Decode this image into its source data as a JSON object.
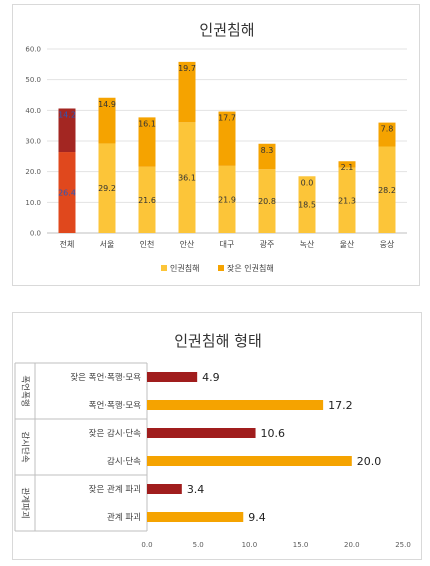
{
  "chart_data": [
    {
      "type": "bar",
      "title": "인권침해",
      "categories": [
        "전체",
        "서울",
        "인천",
        "안산",
        "대구",
        "광주",
        "녹산",
        "울산",
        "웅상"
      ],
      "series": [
        {
          "name": "인권침해",
          "values": [
            26.4,
            29.2,
            21.6,
            36.1,
            21.9,
            20.8,
            18.5,
            21.3,
            28.2
          ],
          "color": "#fcc539"
        },
        {
          "name": "잦은 인권침해",
          "values": [
            14.2,
            14.9,
            16.1,
            19.7,
            17.7,
            8.3,
            0.0,
            2.1,
            7.8
          ],
          "color": "#f5a300"
        }
      ],
      "highlight": {
        "category": "전체",
        "colors": [
          "#e0481d",
          "#a32622"
        ]
      },
      "stacked": true,
      "ylim": [
        0,
        60
      ],
      "yticks": [
        "0.0",
        "10.0",
        "20.0",
        "30.0",
        "40.0",
        "50.0",
        "60.0"
      ],
      "grid": true,
      "legend": "bottom"
    },
    {
      "type": "bar",
      "orientation": "horizontal",
      "title": "인권침해 형태",
      "groups": [
        {
          "label": "폭언폭행",
          "categories": [
            "잦은 폭언·폭행·모욕",
            "폭언·폭행·모욕"
          ],
          "values": [
            4.9,
            17.2
          ]
        },
        {
          "label": "감시단속",
          "categories": [
            "잦은 감시·단속",
            "감시·단속"
          ],
          "values": [
            10.6,
            20.0
          ]
        },
        {
          "label": "관계파괴",
          "categories": [
            "잦은 관계 파괴",
            "관계 파괴"
          ],
          "values": [
            3.4,
            9.4
          ]
        }
      ],
      "colors": {
        "frequent": "#a01d1d",
        "normal": "#f5a300"
      },
      "xlim": [
        0,
        25
      ],
      "xticks": [
        "0.0",
        "5.0",
        "10.0",
        "15.0",
        "20.0",
        "25.0"
      ]
    }
  ]
}
